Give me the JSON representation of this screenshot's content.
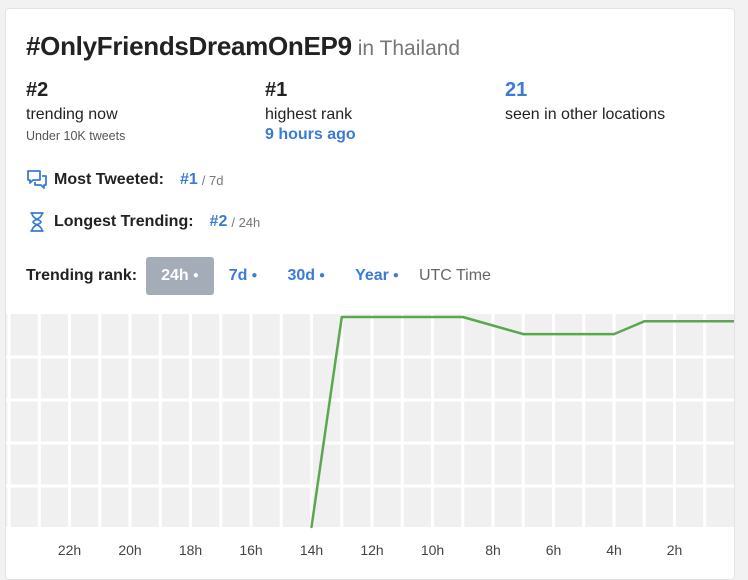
{
  "header": {
    "hashtag": "#OnlyFriendsDreamOnEP9",
    "location": "in Thailand"
  },
  "stats": {
    "trending_now": {
      "rank": "#2",
      "label": "trending now",
      "sub": "Under 10K tweets"
    },
    "highest_rank": {
      "rank": "#1",
      "label": "highest rank",
      "ago": "9 hours ago"
    },
    "other_locations": {
      "count": "21",
      "label": "seen in other locations"
    }
  },
  "metrics": {
    "most_tweeted": {
      "label": "Most Tweeted:",
      "value": "#1",
      "period": "/ 7d"
    },
    "longest_trending": {
      "label": "Longest Trending:",
      "value": "#2",
      "period": "/ 24h"
    }
  },
  "rank_controls": {
    "label": "Trending rank:",
    "tabs": [
      {
        "label": "24h",
        "active": true
      },
      {
        "label": "7d",
        "active": false
      },
      {
        "label": "30d",
        "active": false
      },
      {
        "label": "Year",
        "active": false
      }
    ],
    "timezone": "UTC Time"
  },
  "icons": {
    "most_tweeted": "chat-bubbles-icon",
    "longest_trending": "hourglass-icon"
  },
  "colors": {
    "accent": "#3a7bd5",
    "line": "#5aa74f",
    "active_tab": "#a4adb7"
  },
  "chart_data": {
    "type": "line",
    "title": "",
    "xlabel": "",
    "ylabel": "",
    "x_ticks": [
      "22h",
      "20h",
      "18h",
      "16h",
      "14h",
      "12h",
      "10h",
      "8h",
      "6h",
      "4h",
      "2h"
    ],
    "x_range_hours_ago": [
      24,
      0
    ],
    "y_range_rank": [
      1,
      50
    ],
    "y_inverted": true,
    "grid": true,
    "series": [
      {
        "points": [
          {
            "hours_ago": 14,
            "rank": 50
          },
          {
            "hours_ago": 13,
            "rank": 1
          },
          {
            "hours_ago": 9,
            "rank": 1
          },
          {
            "hours_ago": 7,
            "rank": 5
          },
          {
            "hours_ago": 4,
            "rank": 5
          },
          {
            "hours_ago": 3,
            "rank": 2
          },
          {
            "hours_ago": 0,
            "rank": 2
          }
        ]
      }
    ]
  }
}
